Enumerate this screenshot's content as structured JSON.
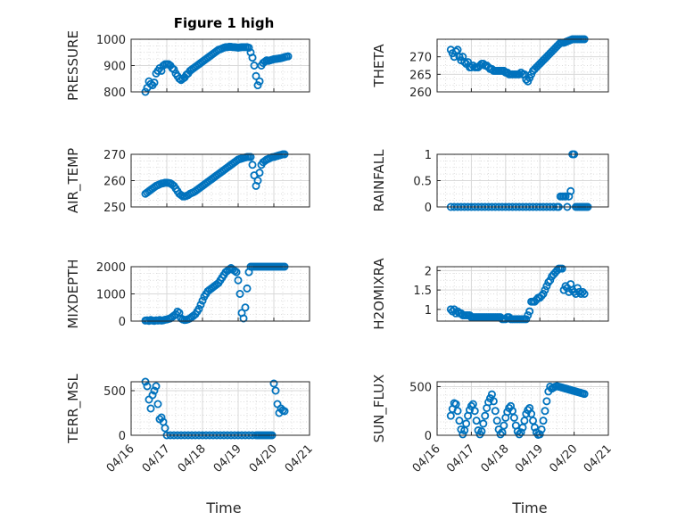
{
  "figure": {
    "title": "Figure 1 high",
    "xlabel": "Time",
    "accent_color": "#0072BD"
  },
  "chart_data": [
    {
      "type": "scatter",
      "name": "PRESSURE",
      "ylabel": "PRESSURE",
      "xlim": [
        "04/16",
        "04/21"
      ],
      "ylim": [
        800,
        1000
      ],
      "yticks": [
        "800",
        "900",
        "1000"
      ],
      "xticks": [],
      "title": "Figure 1 high",
      "grid": true,
      "minor_grid": true,
      "x": [
        16.4,
        16.45,
        16.5,
        16.55,
        16.6,
        16.65,
        16.7,
        16.75,
        16.8,
        16.85,
        16.9,
        16.95,
        17.0,
        17.05,
        17.1,
        17.15,
        17.2,
        17.25,
        17.3,
        17.35,
        17.4,
        17.45,
        17.5,
        17.55,
        17.6,
        17.65,
        17.7,
        17.75,
        17.8,
        17.85,
        17.9,
        17.95,
        18.0,
        18.05,
        18.1,
        18.15,
        18.2,
        18.25,
        18.3,
        18.35,
        18.4,
        18.45,
        18.5,
        18.55,
        18.6,
        18.65,
        18.7,
        18.75,
        18.8,
        18.85,
        18.9,
        18.95,
        19.0,
        19.05,
        19.1,
        19.15,
        19.2,
        19.25,
        19.3,
        19.35,
        19.4,
        19.45,
        19.5,
        19.55,
        19.6,
        19.65,
        19.7,
        19.75,
        19.8,
        19.85,
        19.9,
        19.95,
        20.0,
        20.05,
        20.1,
        20.15,
        20.2,
        20.25,
        20.3,
        20.35,
        20.4
      ],
      "y": [
        800,
        815,
        840,
        830,
        825,
        835,
        870,
        880,
        890,
        880,
        900,
        905,
        905,
        905,
        900,
        890,
        885,
        870,
        860,
        850,
        845,
        850,
        855,
        865,
        870,
        880,
        885,
        890,
        895,
        900,
        905,
        910,
        915,
        920,
        925,
        930,
        935,
        940,
        945,
        950,
        955,
        960,
        962,
        965,
        968,
        970,
        970,
        971,
        971,
        970,
        970,
        969,
        968,
        969,
        970,
        970,
        970,
        970,
        968,
        950,
        930,
        900,
        860,
        825,
        840,
        900,
        910,
        915,
        920,
        918,
        920,
        922,
        924,
        925,
        926,
        927,
        928,
        930,
        932,
        934,
        935
      ]
    },
    {
      "type": "scatter",
      "name": "THETA",
      "ylabel": "THETA",
      "xlim": [
        "04/16",
        "04/21"
      ],
      "ylim": [
        260,
        275
      ],
      "yticks": [
        "260",
        "265",
        "270"
      ],
      "xticks": [],
      "grid": true,
      "minor_grid": true,
      "x": [
        16.4,
        16.45,
        16.5,
        16.55,
        16.6,
        16.65,
        16.7,
        16.75,
        16.8,
        16.85,
        16.9,
        16.95,
        17.0,
        17.05,
        17.1,
        17.15,
        17.2,
        17.25,
        17.3,
        17.35,
        17.4,
        17.45,
        17.5,
        17.55,
        17.6,
        17.65,
        17.7,
        17.75,
        17.8,
        17.85,
        17.9,
        17.95,
        18.0,
        18.05,
        18.1,
        18.15,
        18.2,
        18.25,
        18.3,
        18.35,
        18.4,
        18.45,
        18.5,
        18.55,
        18.6,
        18.65,
        18.7,
        18.75,
        18.8,
        18.85,
        18.9,
        18.95,
        19.0,
        19.05,
        19.1,
        19.15,
        19.2,
        19.25,
        19.3,
        19.35,
        19.4,
        19.45,
        19.5,
        19.55,
        19.6,
        19.65,
        19.7,
        19.75,
        19.8,
        19.85,
        19.9,
        19.95,
        20.0,
        20.05,
        20.1,
        20.15,
        20.2,
        20.25,
        20.3
      ],
      "y": [
        272,
        271,
        270,
        271.5,
        272,
        270,
        269,
        270,
        268.5,
        268,
        268.5,
        267,
        267,
        267.5,
        267,
        267,
        267,
        267.5,
        268,
        268,
        267.5,
        267.5,
        267,
        266.5,
        266.5,
        266,
        266,
        266,
        266,
        266,
        266,
        266,
        265.5,
        265.5,
        265,
        265,
        265,
        265,
        265,
        265,
        265,
        265.5,
        265,
        265,
        263.5,
        263,
        264,
        265,
        266,
        266.5,
        267,
        267.5,
        268,
        268.5,
        269,
        269.5,
        270,
        270.5,
        271,
        271.5,
        272,
        272.5,
        273,
        273.5,
        274,
        274,
        274,
        274.2,
        274.4,
        274.6,
        274.8,
        275,
        275.2,
        275.4,
        275.6,
        275.8,
        276,
        276.2,
        276.4
      ]
    },
    {
      "type": "scatter",
      "name": "AIR_TEMP",
      "ylabel": "AIR_TEMP",
      "xlim": [
        "04/16",
        "04/21"
      ],
      "ylim": [
        250,
        270
      ],
      "yticks": [
        "250",
        "260",
        "270"
      ],
      "xticks": [],
      "grid": true,
      "minor_grid": true,
      "x": [
        16.4,
        16.45,
        16.5,
        16.55,
        16.6,
        16.65,
        16.7,
        16.75,
        16.8,
        16.85,
        16.9,
        16.95,
        17.0,
        17.05,
        17.1,
        17.15,
        17.2,
        17.25,
        17.3,
        17.35,
        17.4,
        17.45,
        17.5,
        17.55,
        17.6,
        17.65,
        17.7,
        17.75,
        17.8,
        17.85,
        17.9,
        17.95,
        18.0,
        18.05,
        18.1,
        18.15,
        18.2,
        18.25,
        18.3,
        18.35,
        18.4,
        18.45,
        18.5,
        18.55,
        18.6,
        18.65,
        18.7,
        18.75,
        18.8,
        18.85,
        18.9,
        18.95,
        19.0,
        19.05,
        19.1,
        19.15,
        19.2,
        19.25,
        19.3,
        19.35,
        19.4,
        19.45,
        19.5,
        19.55,
        19.6,
        19.65,
        19.7,
        19.75,
        19.8,
        19.85,
        19.9,
        19.95,
        20.0,
        20.05,
        20.1,
        20.15,
        20.2,
        20.25,
        20.3
      ],
      "y": [
        255,
        255.5,
        256,
        256.5,
        257,
        257.5,
        258,
        258.3,
        258.6,
        258.9,
        259,
        259.2,
        259.2,
        259.1,
        259,
        258.5,
        258,
        257,
        256,
        255,
        254.5,
        254,
        254,
        254.2,
        254.5,
        255,
        255.3,
        255.6,
        256,
        256.5,
        257,
        257.5,
        258,
        258.5,
        259,
        259.5,
        260,
        260.5,
        261,
        261.5,
        262,
        262.5,
        263,
        263.5,
        264,
        264.5,
        265,
        265.5,
        266,
        266.5,
        267,
        267.5,
        268,
        268.2,
        268.4,
        268.6,
        268.8,
        269,
        269,
        269,
        266,
        262,
        258,
        260,
        263,
        266,
        267,
        267.5,
        268,
        268.3,
        268.6,
        268.9,
        269,
        269.2,
        269.4,
        269.6,
        269.8,
        270,
        270.2
      ]
    },
    {
      "type": "scatter",
      "name": "RAINFALL",
      "ylabel": "RAINFALL",
      "xlim": [
        "04/16",
        "04/21"
      ],
      "ylim": [
        0,
        1
      ],
      "yticks": [
        "0",
        "0.5",
        "1"
      ],
      "xticks": [],
      "grid": true,
      "minor_grid": true,
      "x": [
        16.4,
        16.5,
        16.6,
        16.7,
        16.8,
        16.9,
        17.0,
        17.1,
        17.2,
        17.3,
        17.4,
        17.5,
        17.6,
        17.7,
        17.8,
        17.9,
        18.0,
        18.1,
        18.2,
        18.3,
        18.4,
        18.5,
        18.6,
        18.7,
        18.8,
        18.9,
        19.0,
        19.1,
        19.2,
        19.3,
        19.4,
        19.5,
        19.55,
        19.6,
        19.65,
        19.7,
        19.75,
        19.8,
        19.85,
        19.9,
        19.95,
        20.0,
        20.05,
        20.1,
        20.15,
        20.2,
        20.25,
        20.3,
        20.35,
        20.4
      ],
      "y": [
        0,
        0,
        0,
        0,
        0,
        0,
        0,
        0,
        0,
        0,
        0,
        0,
        0,
        0,
        0,
        0,
        0,
        0,
        0,
        0,
        0,
        0,
        0,
        0,
        0,
        0,
        0,
        0,
        0,
        0,
        0,
        0,
        0,
        0.2,
        0.2,
        0.2,
        0.2,
        0,
        0.2,
        0.3,
        1,
        1,
        0,
        0,
        0,
        0,
        0,
        0,
        0,
        0
      ]
    },
    {
      "type": "scatter",
      "name": "MIXDEPTH",
      "ylabel": "MIXDEPTH",
      "xlim": [
        "04/16",
        "04/21"
      ],
      "ylim": [
        0,
        2000
      ],
      "yticks": [
        "0",
        "1000",
        "2000"
      ],
      "xticks": [],
      "grid": true,
      "minor_grid": true,
      "x": [
        16.4,
        16.45,
        16.5,
        16.55,
        16.6,
        16.65,
        16.7,
        16.75,
        16.8,
        16.85,
        16.9,
        16.95,
        17.0,
        17.05,
        17.1,
        17.15,
        17.2,
        17.25,
        17.3,
        17.35,
        17.4,
        17.45,
        17.5,
        17.55,
        17.6,
        17.65,
        17.7,
        17.75,
        17.8,
        17.85,
        17.9,
        17.95,
        18.0,
        18.05,
        18.1,
        18.15,
        18.2,
        18.25,
        18.3,
        18.35,
        18.4,
        18.45,
        18.5,
        18.55,
        18.6,
        18.65,
        18.7,
        18.75,
        18.8,
        18.85,
        18.9,
        18.95,
        19.0,
        19.05,
        19.1,
        19.15,
        19.2,
        19.25,
        19.3,
        19.35,
        19.4,
        19.45,
        19.5,
        19.55,
        19.6,
        19.65,
        19.7,
        19.75,
        19.8,
        19.85,
        19.9,
        19.95,
        20.0,
        20.05,
        20.1,
        20.15,
        20.2,
        20.25,
        20.3
      ],
      "y": [
        20,
        30,
        10,
        40,
        20,
        10,
        30,
        20,
        40,
        20,
        30,
        50,
        60,
        80,
        100,
        150,
        200,
        250,
        350,
        300,
        100,
        60,
        40,
        50,
        70,
        100,
        150,
        200,
        250,
        350,
        450,
        600,
        750,
        900,
        1000,
        1100,
        1150,
        1200,
        1250,
        1300,
        1350,
        1400,
        1500,
        1600,
        1700,
        1800,
        1850,
        1900,
        1950,
        1900,
        1850,
        1800,
        1500,
        1000,
        300,
        100,
        500,
        1200,
        1800,
        2000,
        2000,
        2000,
        2000,
        2000,
        2000,
        2000,
        2000,
        2000,
        2000,
        2000,
        2000,
        2000,
        2000,
        2000,
        2000,
        2000,
        2000,
        2000,
        2000
      ]
    },
    {
      "type": "scatter",
      "name": "H2OMIXRA",
      "ylabel": "H2OMIXRA",
      "xlim": [
        "04/16",
        "04/21"
      ],
      "ylim": [
        0.7,
        2.1
      ],
      "yticks": [
        "1",
        "1.5",
        "2"
      ],
      "xticks": [],
      "grid": true,
      "minor_grid": true,
      "x": [
        16.4,
        16.45,
        16.5,
        16.55,
        16.6,
        16.65,
        16.7,
        16.75,
        16.8,
        16.85,
        16.9,
        16.95,
        17.0,
        17.05,
        17.1,
        17.15,
        17.2,
        17.25,
        17.3,
        17.35,
        17.4,
        17.45,
        17.5,
        17.55,
        17.6,
        17.65,
        17.7,
        17.75,
        17.8,
        17.85,
        17.9,
        17.95,
        18.0,
        18.05,
        18.1,
        18.15,
        18.2,
        18.25,
        18.3,
        18.35,
        18.4,
        18.45,
        18.5,
        18.55,
        18.6,
        18.65,
        18.7,
        18.75,
        18.8,
        18.85,
        18.9,
        18.95,
        19.0,
        19.05,
        19.1,
        19.15,
        19.2,
        19.25,
        19.3,
        19.35,
        19.4,
        19.45,
        19.5,
        19.55,
        19.6,
        19.65,
        19.7,
        19.75,
        19.8,
        19.85,
        19.9,
        19.95,
        20.0,
        20.05,
        20.1,
        20.15,
        20.2,
        20.25,
        20.3
      ],
      "y": [
        1.0,
        0.95,
        1.0,
        0.9,
        0.95,
        0.9,
        0.9,
        0.85,
        0.85,
        0.85,
        0.85,
        0.85,
        0.8,
        0.8,
        0.8,
        0.8,
        0.8,
        0.8,
        0.8,
        0.8,
        0.8,
        0.8,
        0.8,
        0.8,
        0.8,
        0.8,
        0.8,
        0.8,
        0.8,
        0.8,
        0.75,
        0.75,
        0.75,
        0.8,
        0.8,
        0.75,
        0.75,
        0.75,
        0.75,
        0.75,
        0.75,
        0.75,
        0.75,
        0.75,
        0.75,
        0.85,
        0.95,
        1.2,
        1.2,
        1.2,
        1.25,
        1.3,
        1.3,
        1.35,
        1.4,
        1.5,
        1.6,
        1.7,
        1.75,
        1.85,
        1.9,
        1.95,
        2.0,
        2.05,
        2.05,
        2.05,
        1.5,
        1.6,
        1.55,
        1.45,
        1.65,
        1.5,
        1.45,
        1.4,
        1.55,
        1.45,
        1.4,
        1.45,
        1.4
      ]
    },
    {
      "type": "scatter",
      "name": "TERR_MSL",
      "ylabel": "TERR_MSL",
      "xlim": [
        "04/16",
        "04/21"
      ],
      "ylim": [
        0,
        600
      ],
      "yticks": [
        "0",
        "500"
      ],
      "xticks": [
        "04/16",
        "04/17",
        "04/18",
        "04/19",
        "04/20",
        "04/21"
      ],
      "xlabel": "Time",
      "grid": true,
      "minor_grid": true,
      "x": [
        16.4,
        16.45,
        16.5,
        16.55,
        16.6,
        16.65,
        16.7,
        16.75,
        16.8,
        16.85,
        16.9,
        16.95,
        17.0,
        17.1,
        17.2,
        17.3,
        17.4,
        17.5,
        17.6,
        17.7,
        17.8,
        17.9,
        18.0,
        18.1,
        18.2,
        18.3,
        18.4,
        18.5,
        18.6,
        18.7,
        18.8,
        18.9,
        19.0,
        19.1,
        19.2,
        19.3,
        19.4,
        19.5,
        19.55,
        19.6,
        19.65,
        19.7,
        19.75,
        19.8,
        19.85,
        19.9,
        19.95,
        20.0,
        20.05,
        20.1,
        20.15,
        20.2,
        20.25,
        20.3
      ],
      "y": [
        600,
        550,
        400,
        300,
        450,
        500,
        550,
        350,
        180,
        200,
        150,
        80,
        0,
        0,
        0,
        0,
        0,
        0,
        0,
        0,
        0,
        0,
        0,
        0,
        0,
        0,
        0,
        0,
        0,
        0,
        0,
        0,
        0,
        0,
        0,
        0,
        0,
        0,
        0,
        0,
        0,
        0,
        0,
        0,
        0,
        0,
        0,
        580,
        500,
        350,
        250,
        300,
        280,
        270
      ]
    },
    {
      "type": "scatter",
      "name": "SUN_FLUX",
      "ylabel": "SUN_FLUX",
      "xlim": [
        "04/16",
        "04/21"
      ],
      "ylim": [
        0,
        550
      ],
      "yticks": [
        "0",
        "500"
      ],
      "xticks": [
        "04/16",
        "04/17",
        "04/18",
        "04/19",
        "04/20",
        "04/21"
      ],
      "xlabel": "Time",
      "grid": true,
      "minor_grid": true,
      "x": [
        16.4,
        16.45,
        16.5,
        16.55,
        16.6,
        16.65,
        16.7,
        16.75,
        16.8,
        16.85,
        16.9,
        16.95,
        17.0,
        17.05,
        17.1,
        17.15,
        17.2,
        17.25,
        17.3,
        17.35,
        17.4,
        17.45,
        17.5,
        17.55,
        17.6,
        17.65,
        17.7,
        17.75,
        17.8,
        17.85,
        17.9,
        17.95,
        18.0,
        18.05,
        18.1,
        18.15,
        18.2,
        18.25,
        18.3,
        18.35,
        18.4,
        18.45,
        18.5,
        18.55,
        18.6,
        18.65,
        18.7,
        18.75,
        18.8,
        18.85,
        18.9,
        18.95,
        19.0,
        19.05,
        19.1,
        19.15,
        19.2,
        19.25,
        19.3,
        19.35,
        19.4,
        19.45,
        19.5,
        19.55,
        19.6,
        19.65,
        19.7,
        19.75,
        19.8,
        19.85,
        19.9,
        19.95,
        20.0,
        20.05,
        20.1,
        20.15,
        20.2,
        20.25,
        20.3
      ],
      "y": [
        200,
        270,
        330,
        320,
        250,
        150,
        60,
        10,
        50,
        120,
        200,
        260,
        300,
        320,
        250,
        150,
        50,
        10,
        40,
        120,
        200,
        280,
        340,
        380,
        420,
        350,
        250,
        150,
        60,
        10,
        30,
        100,
        180,
        240,
        280,
        300,
        250,
        180,
        100,
        40,
        10,
        30,
        80,
        150,
        220,
        260,
        280,
        220,
        150,
        80,
        30,
        5,
        10,
        60,
        150,
        250,
        350,
        450,
        500,
        480,
        490,
        500,
        505,
        500,
        495,
        490,
        485,
        480,
        475,
        470,
        465,
        460,
        455,
        450,
        445,
        440,
        435,
        430,
        425
      ]
    }
  ]
}
